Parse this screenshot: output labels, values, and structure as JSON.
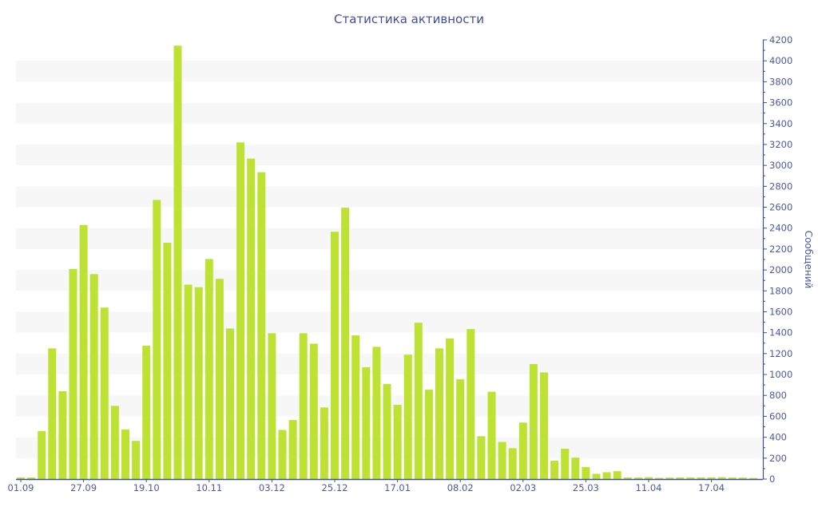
{
  "chart_data": {
    "type": "bar",
    "title": "Статистика активности",
    "xlabel": "",
    "ylabel": "Сообщений",
    "ylim": [
      0,
      4200
    ],
    "ytick_step": 200,
    "grid": "alternating horizontal bands",
    "x_tick_labels": [
      "01.09",
      "27.09",
      "19.10",
      "10.11",
      "03.12",
      "25.12",
      "17.01",
      "08.02",
      "02.03",
      "25.03",
      "11.04",
      "17.04"
    ],
    "x_tick_every": 6,
    "values": [
      15,
      15,
      460,
      1250,
      840,
      2010,
      2430,
      1960,
      1640,
      700,
      475,
      365,
      1275,
      2670,
      2260,
      4145,
      1860,
      1835,
      2105,
      1915,
      1440,
      3220,
      3065,
      2935,
      1395,
      470,
      565,
      1395,
      1295,
      685,
      2365,
      2595,
      1375,
      1070,
      1265,
      910,
      710,
      1190,
      1495,
      855,
      1250,
      1345,
      955,
      1435,
      410,
      835,
      355,
      295,
      540,
      1100,
      1020,
      175,
      290,
      205,
      115,
      50,
      65,
      75,
      15,
      15,
      18,
      12,
      14,
      16,
      16,
      16,
      16,
      18,
      14,
      14,
      10
    ],
    "colors": {
      "bar": "#bde233",
      "axis": "#3e4f9e",
      "text": "#4a5aa0",
      "band": "#f7f7f7"
    }
  }
}
